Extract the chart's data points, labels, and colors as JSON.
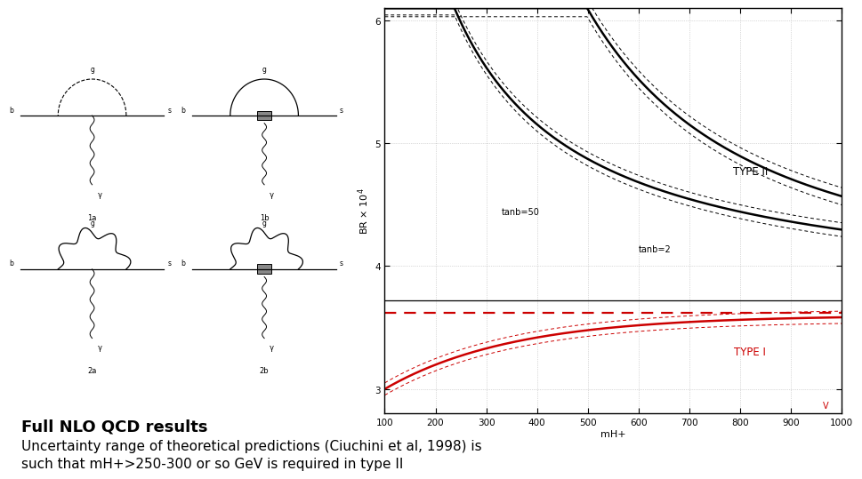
{
  "bg_color": "#ffffff",
  "plot_bg_color": "#ffffff",
  "plot_border_color": "#000000",
  "x_min": 100,
  "x_max": 1000,
  "y_min": 2.8,
  "y_max": 6.1,
  "y_ticks": [
    3,
    4,
    5,
    6
  ],
  "x_ticks": [
    100,
    200,
    300,
    400,
    500,
    600,
    700,
    800,
    900,
    1000
  ],
  "xlabel": "mH+",
  "ylabel_part1": "BR",
  "ylabel_part2": "10",
  "ylabel_exp": "4",
  "grid_color": "#999999",
  "type2_label": "TYPE II",
  "type1_label": "TYPE I",
  "tanb50_label": "tanb=50",
  "tanb2_label": "tanb=2",
  "v_label": "V",
  "dashed_hline_y": 3.62,
  "solid_hline_y": 3.72,
  "dashed_hline_color": "#cc0000",
  "type2_color": "#000000",
  "type1_color": "#cc0000",
  "title_text": "Full NLO QCD results",
  "subtitle_line1": "Uncertainty range of theoretical predictions (Ciuchini et al, 1998) is",
  "subtitle_line2": "such that mH+>250-300 or so GeV is required in type II",
  "title_fontsize": 13,
  "subtitle_fontsize": 11
}
